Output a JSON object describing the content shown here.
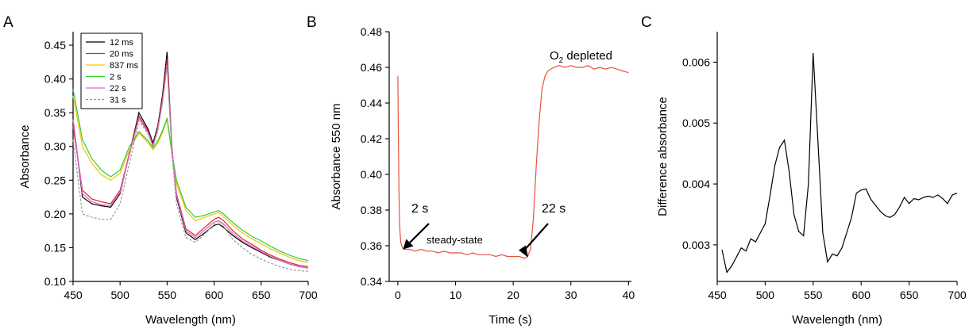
{
  "chart_data": [
    {
      "panel": "A",
      "type": "line",
      "xlabel": "Wavelength (nm)",
      "ylabel": "Absorbance",
      "xlim": [
        450,
        700
      ],
      "ylim": [
        0.1,
        0.47
      ],
      "xticks": [
        450,
        500,
        550,
        600,
        650,
        700
      ],
      "yticks": [
        0.1,
        0.15,
        0.2,
        0.25,
        0.3,
        0.35,
        0.4,
        0.45
      ],
      "xtick_labels": [
        "450",
        "500",
        "550",
        "600",
        "650",
        "700"
      ],
      "ytick_labels": [
        "0.10",
        "0.15",
        "0.20",
        "0.25",
        "0.30",
        "0.35",
        "0.40",
        "0.45"
      ],
      "legend": "top-left",
      "series": [
        {
          "name": "12 ms",
          "color": "#000000",
          "dash": "",
          "x": [
            450,
            460,
            470,
            480,
            490,
            500,
            510,
            520,
            530,
            535,
            540,
            545,
            550,
            555,
            560,
            570,
            580,
            590,
            600,
            605,
            610,
            620,
            630,
            640,
            650,
            660,
            670,
            680,
            690,
            700
          ],
          "values": [
            0.34,
            0.225,
            0.215,
            0.212,
            0.21,
            0.23,
            0.29,
            0.35,
            0.325,
            0.305,
            0.33,
            0.375,
            0.44,
            0.3,
            0.225,
            0.172,
            0.162,
            0.172,
            0.183,
            0.185,
            0.18,
            0.168,
            0.158,
            0.15,
            0.143,
            0.136,
            0.131,
            0.126,
            0.122,
            0.12
          ]
        },
        {
          "name": "20 ms",
          "color": "#d62728",
          "dash": "",
          "x": [
            450,
            460,
            470,
            480,
            490,
            500,
            510,
            520,
            530,
            535,
            540,
            545,
            550,
            555,
            560,
            570,
            580,
            590,
            600,
            605,
            610,
            620,
            630,
            640,
            650,
            660,
            670,
            680,
            690,
            700
          ],
          "values": [
            0.33,
            0.235,
            0.222,
            0.218,
            0.215,
            0.235,
            0.29,
            0.345,
            0.322,
            0.302,
            0.327,
            0.37,
            0.43,
            0.3,
            0.23,
            0.178,
            0.168,
            0.18,
            0.192,
            0.195,
            0.19,
            0.175,
            0.163,
            0.155,
            0.146,
            0.139,
            0.133,
            0.128,
            0.124,
            0.122
          ]
        },
        {
          "name": "837 ms",
          "color": "#f2c500",
          "dash": "",
          "x": [
            450,
            460,
            470,
            480,
            490,
            500,
            510,
            520,
            530,
            535,
            540,
            545,
            550,
            555,
            560,
            570,
            580,
            590,
            600,
            605,
            610,
            620,
            630,
            640,
            650,
            660,
            670,
            680,
            690,
            700
          ],
          "values": [
            0.375,
            0.3,
            0.275,
            0.258,
            0.25,
            0.26,
            0.295,
            0.32,
            0.305,
            0.295,
            0.305,
            0.32,
            0.34,
            0.29,
            0.245,
            0.205,
            0.19,
            0.195,
            0.2,
            0.202,
            0.196,
            0.183,
            0.172,
            0.163,
            0.156,
            0.148,
            0.142,
            0.136,
            0.131,
            0.128
          ]
        },
        {
          "name": "2 s",
          "color": "#33cc33",
          "dash": "",
          "x": [
            450,
            460,
            470,
            480,
            490,
            500,
            510,
            520,
            530,
            535,
            540,
            545,
            550,
            555,
            560,
            570,
            580,
            590,
            600,
            605,
            610,
            620,
            630,
            640,
            650,
            660,
            670,
            680,
            690,
            700
          ],
          "values": [
            0.385,
            0.31,
            0.282,
            0.265,
            0.255,
            0.265,
            0.3,
            0.322,
            0.308,
            0.298,
            0.308,
            0.323,
            0.342,
            0.293,
            0.25,
            0.21,
            0.195,
            0.198,
            0.203,
            0.205,
            0.2,
            0.187,
            0.176,
            0.167,
            0.16,
            0.152,
            0.145,
            0.139,
            0.134,
            0.131
          ]
        },
        {
          "name": "22 s",
          "color": "#e066cc",
          "dash": "",
          "x": [
            450,
            460,
            470,
            480,
            490,
            500,
            510,
            520,
            530,
            535,
            540,
            545,
            550,
            555,
            560,
            570,
            580,
            590,
            600,
            605,
            610,
            620,
            630,
            640,
            650,
            660,
            670,
            680,
            690,
            700
          ],
          "values": [
            0.34,
            0.23,
            0.218,
            0.214,
            0.212,
            0.232,
            0.288,
            0.342,
            0.32,
            0.3,
            0.325,
            0.365,
            0.42,
            0.298,
            0.228,
            0.175,
            0.165,
            0.176,
            0.188,
            0.19,
            0.185,
            0.171,
            0.16,
            0.152,
            0.144,
            0.137,
            0.131,
            0.126,
            0.122,
            0.12
          ]
        },
        {
          "name": "31 s",
          "color": "#999999",
          "dash": "3,2",
          "x": [
            450,
            460,
            470,
            480,
            490,
            500,
            510,
            520,
            530,
            535,
            540,
            545,
            550,
            555,
            560,
            570,
            580,
            590,
            600,
            605,
            610,
            620,
            630,
            640,
            650,
            660,
            670,
            680,
            690,
            700
          ],
          "values": [
            0.31,
            0.2,
            0.195,
            0.192,
            0.192,
            0.215,
            0.275,
            0.338,
            0.318,
            0.3,
            0.322,
            0.365,
            0.422,
            0.29,
            0.215,
            0.165,
            0.158,
            0.17,
            0.185,
            0.19,
            0.182,
            0.162,
            0.15,
            0.14,
            0.133,
            0.127,
            0.122,
            0.118,
            0.116,
            0.115
          ]
        }
      ]
    },
    {
      "panel": "B",
      "type": "line",
      "xlabel": "Time (s)",
      "ylabel": "Absorbance 550 nm",
      "xlim": [
        -1.5,
        40.5
      ],
      "ylim": [
        0.34,
        0.48
      ],
      "xticks": [
        0,
        10,
        20,
        30,
        40
      ],
      "yticks": [
        0.34,
        0.36,
        0.38,
        0.4,
        0.42,
        0.44,
        0.46,
        0.48
      ],
      "xtick_labels": [
        "0",
        "10",
        "20",
        "30",
        "40"
      ],
      "ytick_labels": [
        "0.34",
        "0.36",
        "0.38",
        "0.40",
        "0.42",
        "0.44",
        "0.46",
        "0.48"
      ],
      "series": [
        {
          "color": "#e8523a",
          "x": [
            0,
            0.1,
            0.2,
            0.3,
            0.5,
            0.8,
            1,
            2,
            3,
            4,
            5,
            6,
            7,
            8,
            9,
            10,
            11,
            12,
            13,
            14,
            15,
            16,
            17,
            18,
            19,
            20,
            21,
            22,
            22.5,
            23,
            23.5,
            24,
            24.5,
            25,
            25.5,
            26,
            27,
            28,
            29,
            30,
            31,
            32,
            33,
            34,
            35,
            36,
            37,
            38,
            39,
            40
          ],
          "values": [
            0.455,
            0.42,
            0.39,
            0.372,
            0.362,
            0.359,
            0.358,
            0.358,
            0.357,
            0.358,
            0.357,
            0.357,
            0.356,
            0.357,
            0.356,
            0.356,
            0.356,
            0.355,
            0.356,
            0.355,
            0.355,
            0.355,
            0.354,
            0.355,
            0.354,
            0.354,
            0.354,
            0.353,
            0.354,
            0.358,
            0.375,
            0.405,
            0.43,
            0.448,
            0.455,
            0.458,
            0.46,
            0.461,
            0.46,
            0.461,
            0.46,
            0.46,
            0.461,
            0.459,
            0.46,
            0.459,
            0.46,
            0.459,
            0.458,
            0.457
          ]
        }
      ],
      "annotations": [
        {
          "text": "2 s",
          "x": 2,
          "y": 0.358
        },
        {
          "text": "steady-state",
          "x": 8,
          "y": 0.36
        },
        {
          "text": "22 s",
          "x": 22,
          "y": 0.353
        }
      ],
      "o2_label": {
        "main": "O",
        "sub": "2",
        "rest": " depleted"
      }
    },
    {
      "panel": "C",
      "type": "line",
      "xlabel": "Wavelength (nm)",
      "ylabel": "Difference absorbance",
      "xlim": [
        450,
        700
      ],
      "ylim": [
        0.0024,
        0.0065
      ],
      "xticks": [
        450,
        500,
        550,
        600,
        650,
        700
      ],
      "yticks": [
        0.003,
        0.004,
        0.005,
        0.006
      ],
      "xtick_labels": [
        "450",
        "500",
        "550",
        "600",
        "650",
        "700"
      ],
      "ytick_labels": [
        "0.003",
        "0.004",
        "0.005",
        "0.006"
      ],
      "series": [
        {
          "color": "#000000",
          "x": [
            455,
            460,
            465,
            470,
            475,
            480,
            485,
            490,
            495,
            500,
            505,
            510,
            515,
            520,
            525,
            530,
            535,
            540,
            545,
            550,
            555,
            560,
            565,
            570,
            575,
            580,
            585,
            590,
            595,
            600,
            605,
            610,
            615,
            620,
            625,
            630,
            635,
            640,
            645,
            650,
            655,
            660,
            665,
            670,
            675,
            680,
            685,
            690,
            695,
            700
          ],
          "values": [
            0.00292,
            0.00255,
            0.00265,
            0.0028,
            0.00295,
            0.0029,
            0.0031,
            0.00305,
            0.0032,
            0.00335,
            0.0038,
            0.0043,
            0.0046,
            0.00472,
            0.0042,
            0.0035,
            0.00322,
            0.00315,
            0.004,
            0.00615,
            0.0047,
            0.0032,
            0.00272,
            0.00285,
            0.00282,
            0.00295,
            0.0032,
            0.00345,
            0.00385,
            0.0039,
            0.00392,
            0.00375,
            0.00365,
            0.00355,
            0.00348,
            0.00345,
            0.0035,
            0.00362,
            0.00378,
            0.00368,
            0.00376,
            0.00374,
            0.00378,
            0.0038,
            0.00378,
            0.00382,
            0.00376,
            0.00368,
            0.00382,
            0.00385
          ]
        }
      ]
    }
  ],
  "panel_labels": [
    "A",
    "B",
    "C"
  ]
}
